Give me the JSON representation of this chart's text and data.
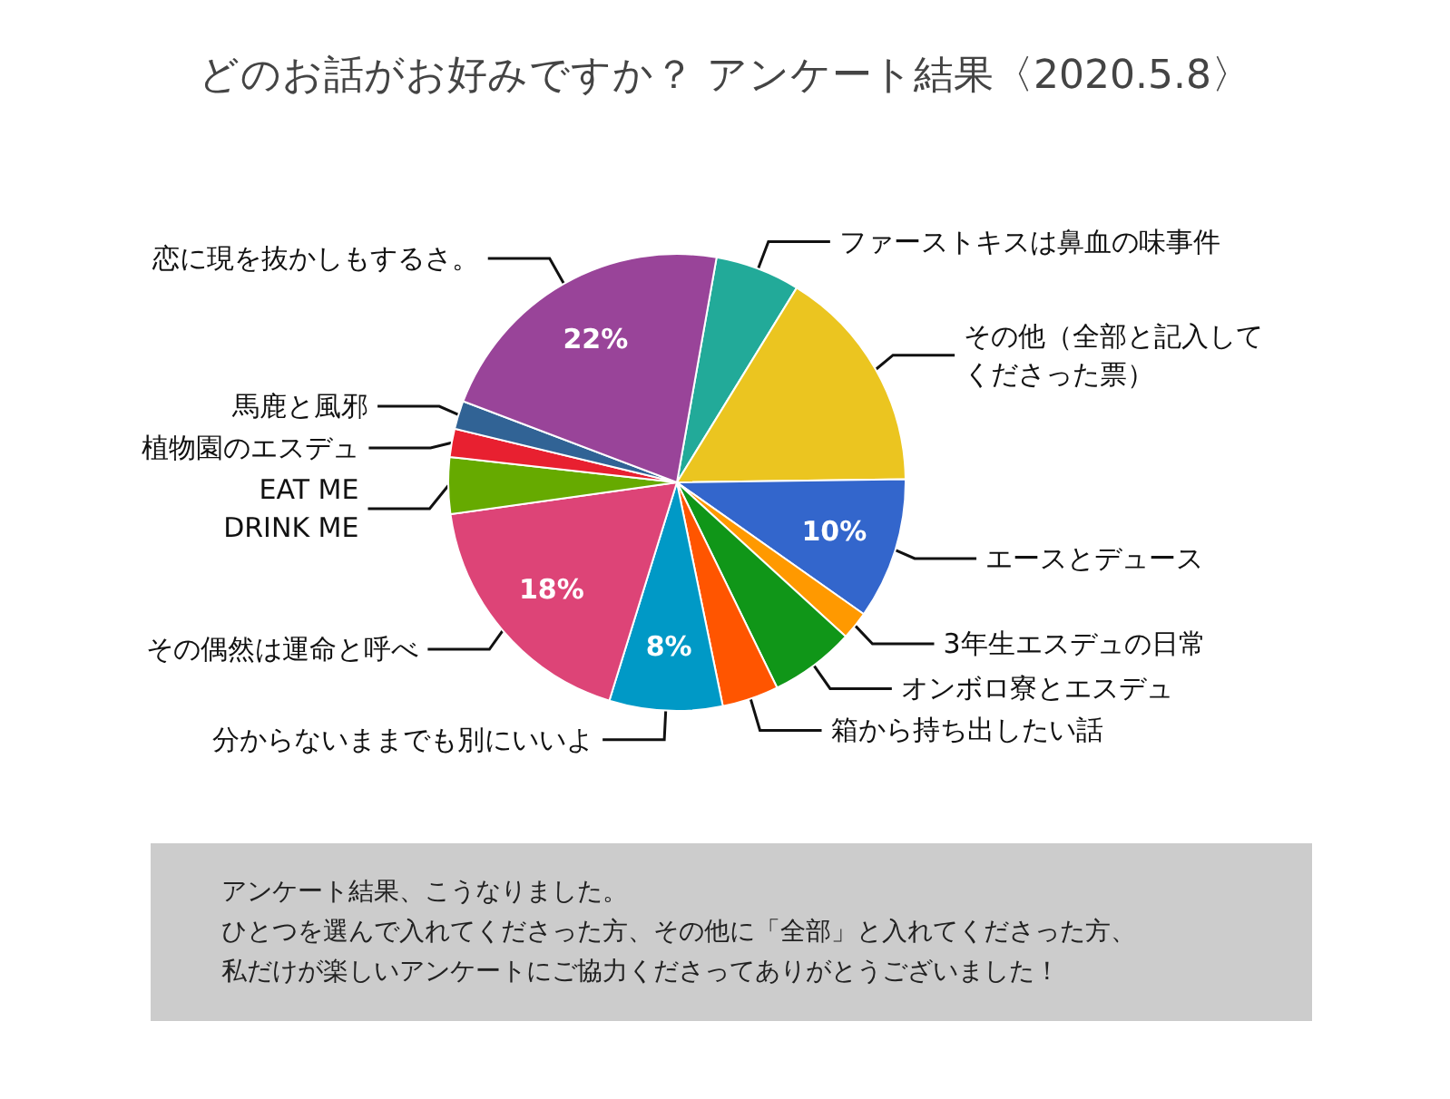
{
  "chart_data": {
    "type": "pie",
    "title": "どのお話がお好みですか？ アンケート結果〈2020.5.8〉",
    "categories": [
      "ファーストキスは鼻血の味事件",
      "その他（全部と記入してくださった票）",
      "エースとデュース",
      "3年生エスデュの日常",
      "オンボロ寮とエスデュ",
      "箱から持ち出したい話",
      "分からないままでも別にいいよ",
      "その偶然は運命と呼べ",
      "EAT ME\nDRINK ME",
      "植物園のエスデュ",
      "馬鹿と風邪",
      "恋に現を抜かしもするさ。"
    ],
    "values": [
      6,
      16,
      10,
      2,
      6,
      4,
      8,
      18,
      4,
      2,
      2,
      22
    ],
    "colors": [
      "#22aa99",
      "#ebc520",
      "#3366cc",
      "#ff9900",
      "#109618",
      "#ff5500",
      "#0099c6",
      "#dd4477",
      "#66aa00",
      "#e82030",
      "#316395",
      "#994499"
    ],
    "value_labels": [
      null,
      null,
      "10%",
      null,
      null,
      null,
      "8%",
      "18%",
      null,
      null,
      null,
      "22%"
    ],
    "annotations": [
      "アンケート結果、こうなりました。",
      "ひとつを選んで入れてくださった方、その他に「全部」と入れてくださった方、",
      "私だけが楽しいアンケートにご協力くださってありがとうございました！"
    ]
  }
}
